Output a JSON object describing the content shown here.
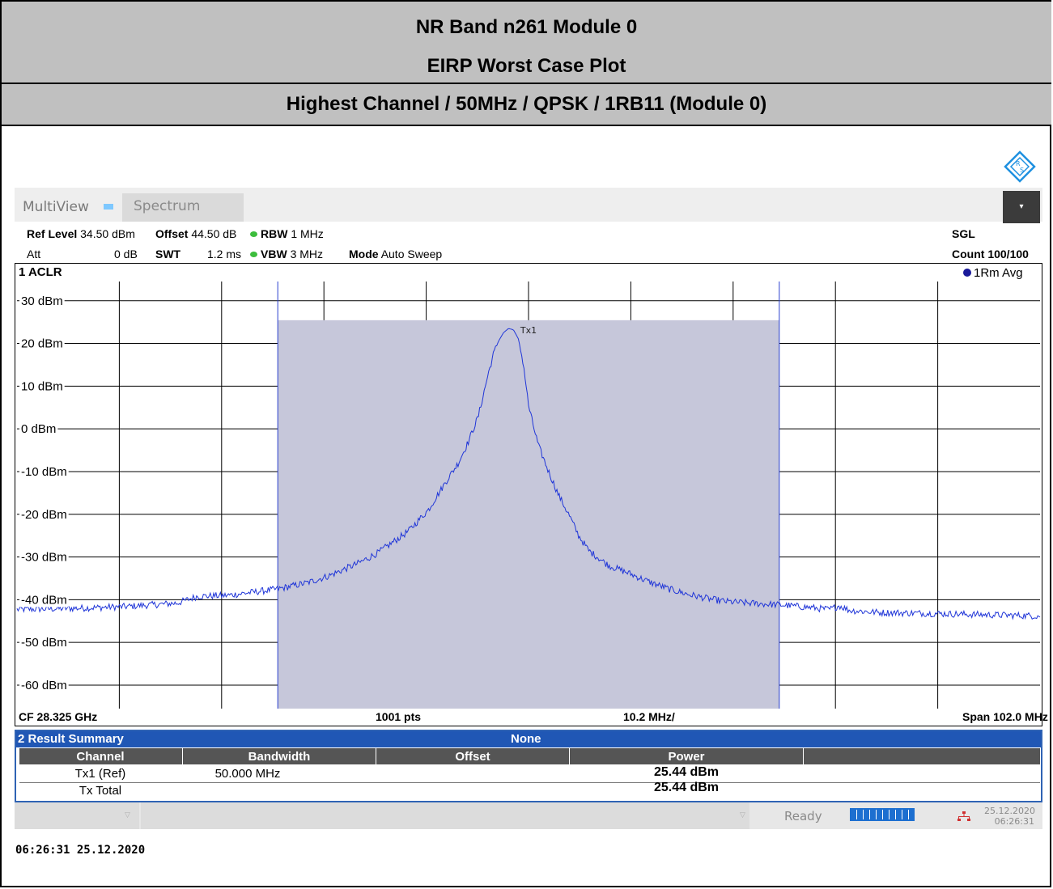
{
  "report": {
    "title_line1": "NR Band n261 Module 0",
    "title_line2": "EIRP Worst Case Plot",
    "subtitle": "Highest Channel / 50MHz / QPSK / 1RB11 (Module 0)"
  },
  "toolbar": {
    "multiview_label": "MultiView",
    "spectrum_tab": "Spectrum",
    "dropdown_glyph": "▾"
  },
  "params": {
    "ref_level_label": "Ref Level",
    "ref_level_value": "34.50 dBm",
    "offset_label": "Offset",
    "offset_value": "44.50 dB",
    "rbw_label": "RBW",
    "rbw_value": "1 MHz",
    "att_label": "Att",
    "att_value": "0 dB",
    "swt_label": "SWT",
    "swt_value": "1.2 ms",
    "vbw_label": "VBW",
    "vbw_value": "3 MHz",
    "mode_label": "Mode",
    "mode_value": "Auto Sweep",
    "sgl_label": "SGL",
    "count_label": "Count 100/100"
  },
  "plot": {
    "window_title": "1 ACLR",
    "trace_label": "1Rm Avg",
    "channel_label": "Tx1",
    "cf_label": "CF 28.325 GHz",
    "pts_label": "1001 pts",
    "div_label": "10.2 MHz/",
    "span_label": "Span 102.0 MHz"
  },
  "chart_data": {
    "type": "line",
    "title": "1 ACLR",
    "xlabel": "",
    "ylabel": "",
    "x_unit": "MHz",
    "x_center_ghz": 28.325,
    "xlim": [
      -51.0,
      51.0
    ],
    "ylim": [
      -65.5,
      34.5
    ],
    "yticks": [
      30,
      20,
      10,
      0,
      -10,
      -20,
      -30,
      -40,
      -50,
      -60
    ],
    "ytick_labels": [
      "30 dBm",
      "20 dBm",
      "10 dBm",
      "0 dBm",
      "-10 dBm",
      "-20 dBm",
      "-30 dBm",
      "-40 dBm",
      "-50 dBm",
      "-60 dBm"
    ],
    "grid": true,
    "channel_band": {
      "name": "Tx1",
      "x_start": -25.0,
      "x_end": 25.0,
      "level": 25.44
    },
    "series": [
      {
        "name": "1Rm Avg",
        "color": "#1f35d8",
        "x": [
          -51.0,
          -45.0,
          -40.0,
          -35.0,
          -33.0,
          -30.0,
          -25.0,
          -22.0,
          -20.0,
          -17.0,
          -15.0,
          -12.0,
          -10.0,
          -8.0,
          -7.0,
          -6.0,
          -5.0,
          -4.5,
          -4.0,
          -3.5,
          -3.0,
          -2.5,
          -2.0,
          -1.5,
          -1.0,
          -0.5,
          0.0,
          0.5,
          1.0,
          1.5,
          2.0,
          3.0,
          4.0,
          5.0,
          6.0,
          8.0,
          10.0,
          12.0,
          14.0,
          16.0,
          17.0,
          18.0,
          19.0,
          20.0,
          22.0,
          25.0,
          28.0,
          30.0,
          31.0,
          32.0,
          35.0,
          40.0,
          45.0,
          51.0
        ],
        "y": [
          -42.3,
          -42.0,
          -41.6,
          -40.8,
          -39.2,
          -39.0,
          -37.5,
          -36.0,
          -34.5,
          -31.5,
          -29.0,
          -24.0,
          -19.0,
          -11.5,
          -8.0,
          -3.0,
          3.0,
          8.0,
          13.0,
          17.5,
          20.5,
          22.5,
          23.5,
          23.2,
          21.0,
          15.0,
          5.5,
          0.5,
          -4.0,
          -7.0,
          -10.0,
          -15.5,
          -20.0,
          -25.0,
          -28.5,
          -32.0,
          -33.8,
          -35.8,
          -37.5,
          -38.8,
          -39.3,
          -39.8,
          -40.2,
          -40.5,
          -40.8,
          -41.2,
          -41.8,
          -42.3,
          -41.4,
          -42.5,
          -43.0,
          -43.2,
          -43.5,
          -43.8
        ]
      }
    ]
  },
  "result_summary": {
    "title": "2 Result Summary",
    "ref_state": "None",
    "headers": [
      "Channel",
      "Bandwidth",
      "Offset",
      "Power"
    ],
    "rows": [
      {
        "channel": "Tx1 (Ref)",
        "bandwidth": "50.000 MHz",
        "offset": "",
        "power": "25.44 dBm"
      },
      {
        "channel": "Tx Total",
        "bandwidth": "",
        "offset": "",
        "power": "25.44 dBm"
      }
    ]
  },
  "status": {
    "ready": "Ready",
    "date": "25.12.2020",
    "time": "06:26:31"
  },
  "footer": {
    "timestamp": "06:26:31  25.12.2020"
  }
}
